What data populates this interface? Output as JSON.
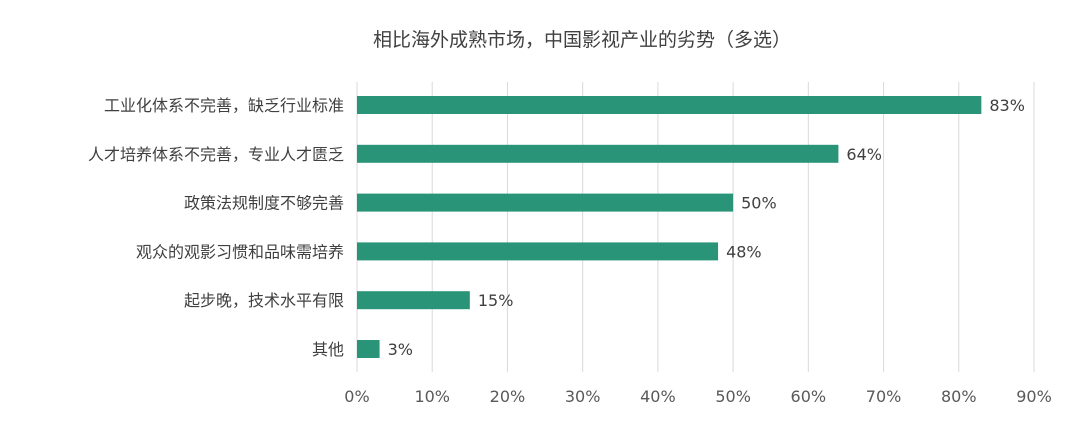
{
  "chart_data": {
    "type": "bar",
    "orientation": "horizontal",
    "title": "相比海外成熟市场，中国影视产业的劣势（多选）",
    "categories": [
      "工业化体系不完善，缺乏行业标准",
      "人才培养体系不完善，专业人才匮乏",
      "政策法规制度不够完善",
      "观众的观影习惯和品味需培养",
      "起步晚，技术水平有限",
      "其他"
    ],
    "values": [
      83,
      64,
      50,
      48,
      15,
      3
    ],
    "value_labels": [
      "83%",
      "64%",
      "50%",
      "48%",
      "15%",
      "3%"
    ],
    "xlim": [
      0,
      90
    ],
    "x_ticks": [
      0,
      10,
      20,
      30,
      40,
      50,
      60,
      70,
      80,
      90
    ],
    "x_tick_labels": [
      "0%",
      "10%",
      "20%",
      "30%",
      "40%",
      "50%",
      "60%",
      "70%",
      "80%",
      "90%"
    ],
    "bar_color": "#2a9478",
    "grid": "vertical",
    "legend": "none"
  }
}
